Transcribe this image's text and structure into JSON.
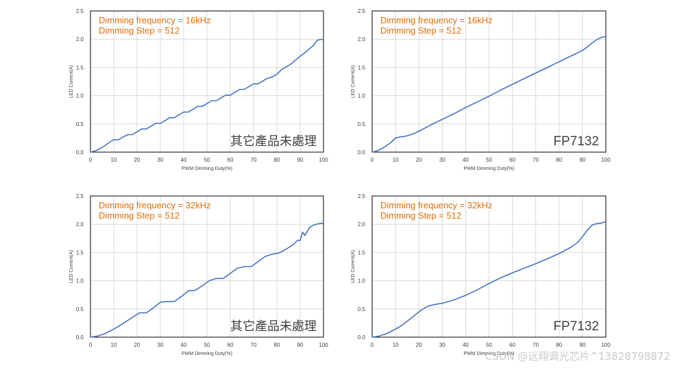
{
  "colors": {
    "line": "#4472c4",
    "annotation": "#e36c09",
    "grid": "#d9d9d9",
    "frame": "#000000",
    "text": "#404040",
    "watermark": "#c8c8c8"
  },
  "watermark": "CSDN @远翔调光芯片^13828798872",
  "chart_data": [
    {
      "type": "line",
      "annotation": [
        "Dimming frequency = 16kHz",
        "Dimming Step = 512"
      ],
      "corner_label": "其它產品未處理",
      "xlabel": "PWM Dimming Duty(%)",
      "ylabel": "LED Current(A)",
      "xlim": [
        0,
        100
      ],
      "ylim": [
        0,
        2.5
      ],
      "xticks": [
        "0",
        "10",
        "20",
        "30",
        "40",
        "50",
        "60",
        "70",
        "80",
        "90",
        "100"
      ],
      "yticks": [
        "0.0",
        "0.5",
        "1.0",
        "1.5",
        "2.0",
        "2.5"
      ],
      "grid": true,
      "series": [
        {
          "name": "LED Current",
          "x": [
            0,
            2,
            4,
            6,
            8,
            10,
            12,
            14,
            16,
            18,
            20,
            22,
            24,
            26,
            28,
            30,
            32,
            34,
            36,
            38,
            40,
            42,
            44,
            46,
            48,
            50,
            52,
            54,
            56,
            58,
            60,
            62,
            64,
            66,
            68,
            70,
            72,
            74,
            76,
            78,
            80,
            82,
            84,
            86,
            88,
            90,
            92,
            94,
            96,
            97,
            98,
            100
          ],
          "y": [
            0,
            0.02,
            0.06,
            0.11,
            0.17,
            0.22,
            0.22,
            0.27,
            0.31,
            0.31,
            0.36,
            0.41,
            0.41,
            0.46,
            0.51,
            0.51,
            0.56,
            0.61,
            0.61,
            0.66,
            0.71,
            0.71,
            0.76,
            0.81,
            0.81,
            0.86,
            0.91,
            0.91,
            0.96,
            1.01,
            1.01,
            1.06,
            1.11,
            1.11,
            1.16,
            1.21,
            1.21,
            1.26,
            1.31,
            1.33,
            1.38,
            1.46,
            1.51,
            1.56,
            1.63,
            1.7,
            1.76,
            1.83,
            1.9,
            1.97,
            1.99,
            2.0
          ]
        }
      ]
    },
    {
      "type": "line",
      "annotation": [
        "Dimming frequency = 16kHz",
        "Dimming Step = 512"
      ],
      "corner_label": "FP7132",
      "xlabel": "PWM Dimming Duty(%)",
      "ylabel": "LED Current(A)",
      "xlim": [
        0,
        100
      ],
      "ylim": [
        0,
        2.5
      ],
      "xticks": [
        "0",
        "10",
        "20",
        "30",
        "40",
        "50",
        "60",
        "70",
        "80",
        "90",
        "100"
      ],
      "yticks": [
        "0.0",
        "0.5",
        "1.0",
        "1.5",
        "2.0",
        "2.5"
      ],
      "grid": true,
      "series": [
        {
          "name": "LED Current",
          "x": [
            0,
            2,
            4,
            6,
            8,
            10,
            12,
            14,
            16,
            18,
            20,
            25,
            30,
            35,
            40,
            45,
            50,
            55,
            60,
            65,
            70,
            75,
            80,
            85,
            90,
            92,
            94,
            96,
            98,
            100
          ],
          "y": [
            0,
            0.02,
            0.06,
            0.11,
            0.17,
            0.25,
            0.27,
            0.28,
            0.3,
            0.33,
            0.37,
            0.48,
            0.58,
            0.68,
            0.79,
            0.89,
            0.99,
            1.1,
            1.2,
            1.3,
            1.4,
            1.5,
            1.6,
            1.7,
            1.8,
            1.86,
            1.93,
            1.99,
            2.03,
            2.05
          ]
        }
      ]
    },
    {
      "type": "line",
      "annotation": [
        "Dimming frequency = 32kHz",
        "Dimming Step = 512"
      ],
      "corner_label": "其它產品未處理",
      "xlabel": "PWM Dimming Duty(%)",
      "ylabel": "LED Current(A)",
      "xlim": [
        0,
        100
      ],
      "ylim": [
        0,
        2.5
      ],
      "xticks": [
        "0",
        "10",
        "20",
        "30",
        "40",
        "50",
        "60",
        "70",
        "80",
        "90",
        "100"
      ],
      "yticks": [
        "0.0",
        "0.5",
        "1.0",
        "1.5",
        "2.0",
        "2.5"
      ],
      "grid": true,
      "series": [
        {
          "name": "LED Current",
          "x": [
            0,
            3,
            6,
            9,
            12,
            15,
            18,
            21,
            24,
            27,
            30,
            33,
            36,
            39,
            42,
            45,
            48,
            51,
            54,
            57,
            60,
            63,
            66,
            69,
            72,
            75,
            78,
            81,
            84,
            87,
            89,
            90,
            91,
            92,
            94,
            96,
            98,
            100
          ],
          "y": [
            0,
            0.02,
            0.06,
            0.12,
            0.19,
            0.27,
            0.35,
            0.43,
            0.43,
            0.52,
            0.62,
            0.63,
            0.63,
            0.72,
            0.82,
            0.83,
            0.91,
            1.0,
            1.04,
            1.04,
            1.13,
            1.22,
            1.25,
            1.25,
            1.34,
            1.43,
            1.47,
            1.49,
            1.56,
            1.64,
            1.72,
            1.71,
            1.86,
            1.8,
            1.94,
            1.99,
            2.01,
            2.02
          ]
        }
      ]
    },
    {
      "type": "line",
      "annotation": [
        "Dimming frequency = 32kHz",
        "Dimming Step = 512"
      ],
      "corner_label": "FP7132",
      "xlabel": "PWM Dimming Duty(%)",
      "ylabel": "LED Current(A)",
      "xlim": [
        0,
        100
      ],
      "ylim": [
        0,
        2.5
      ],
      "xticks": [
        "0",
        "10",
        "20",
        "30",
        "40",
        "50",
        "60",
        "70",
        "80",
        "90",
        "100"
      ],
      "yticks": [
        "0.0",
        "0.5",
        "1.0",
        "1.5",
        "2.0",
        "2.5"
      ],
      "grid": true,
      "series": [
        {
          "name": "LED Current",
          "x": [
            0,
            3,
            6,
            9,
            12,
            15,
            18,
            21,
            24,
            27,
            30,
            35,
            40,
            45,
            50,
            55,
            60,
            65,
            70,
            75,
            80,
            85,
            88,
            90,
            92,
            94,
            96,
            98,
            100
          ],
          "y": [
            0,
            0.02,
            0.06,
            0.12,
            0.19,
            0.28,
            0.38,
            0.48,
            0.55,
            0.58,
            0.6,
            0.66,
            0.74,
            0.84,
            0.95,
            1.05,
            1.14,
            1.22,
            1.3,
            1.39,
            1.48,
            1.59,
            1.68,
            1.78,
            1.89,
            1.98,
            2.01,
            2.02,
            2.05
          ]
        }
      ]
    }
  ]
}
